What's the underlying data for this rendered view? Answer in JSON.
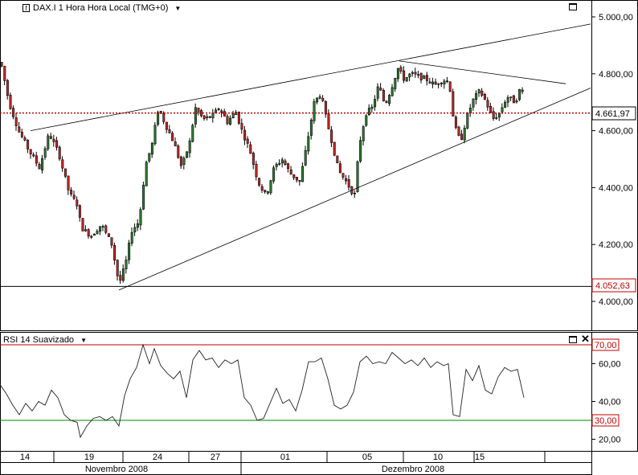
{
  "main_panel": {
    "title": "DAX.I 1 Hora Hora Local (TMG+0)",
    "icon": "chart-indicator-icon",
    "dropdown_icon": "triangle-down-icon",
    "window_icon": "maximize-icon"
  },
  "rsi_panel": {
    "title": "RSI 14 Suavizado",
    "dropdown_icon": "triangle-down-icon",
    "window_icon": "maximize-icon",
    "close_icon": "close-icon"
  },
  "colors": {
    "up_candle": "#2e7d32",
    "down_candle": "#c62828",
    "last_price_line": "#c00000",
    "overbought_line": "#c00000",
    "oversold_line": "#008000",
    "trendline": "#000000"
  },
  "chart_data": [
    {
      "type": "candlestick",
      "title": "DAX.I 1 Hora Hora Local (TMG+0)",
      "ylim": [
        3900,
        5050
      ],
      "y_ticks": [
        "5.000,00",
        "4.800,00",
        "4.600,00",
        "4.400,00",
        "4.200,00",
        "4.000,00"
      ],
      "y_tick_values": [
        5000,
        4800,
        4600,
        4400,
        4200,
        4000
      ],
      "price_labels": [
        {
          "label": "4.661,97",
          "value": 4661.97
        },
        {
          "label": "4.052,63",
          "value": 4052.63
        }
      ],
      "last_price": 4661.97,
      "horizontal_level": 4052.63,
      "x_ticks": [
        "14",
        "19",
        "24",
        "27",
        "01",
        "05",
        "10",
        "15"
      ],
      "month_labels": [
        "Novembro 2008",
        "Dezembro 2008"
      ],
      "close_path": [
        [
          0,
          4840
        ],
        [
          10,
          4700
        ],
        [
          22,
          4600
        ],
        [
          35,
          4530
        ],
        [
          48,
          4470
        ],
        [
          60,
          4590
        ],
        [
          72,
          4520
        ],
        [
          85,
          4380
        ],
        [
          95,
          4340
        ],
        [
          100,
          4260
        ],
        [
          112,
          4230
        ],
        [
          125,
          4270
        ],
        [
          138,
          4200
        ],
        [
          147,
          4060
        ],
        [
          155,
          4130
        ],
        [
          163,
          4250
        ],
        [
          172,
          4280
        ],
        [
          180,
          4480
        ],
        [
          188,
          4550
        ],
        [
          196,
          4680
        ],
        [
          205,
          4620
        ],
        [
          215,
          4560
        ],
        [
          225,
          4470
        ],
        [
          235,
          4560
        ],
        [
          242,
          4680
        ],
        [
          252,
          4640
        ],
        [
          262,
          4650
        ],
        [
          272,
          4680
        ],
        [
          282,
          4630
        ],
        [
          292,
          4670
        ],
        [
          300,
          4600
        ],
        [
          310,
          4530
        ],
        [
          320,
          4420
        ],
        [
          330,
          4370
        ],
        [
          340,
          4470
        ],
        [
          350,
          4500
        ],
        [
          360,
          4450
        ],
        [
          372,
          4420
        ],
        [
          380,
          4540
        ],
        [
          390,
          4700
        ],
        [
          398,
          4730
        ],
        [
          405,
          4640
        ],
        [
          412,
          4560
        ],
        [
          420,
          4460
        ],
        [
          430,
          4420
        ],
        [
          440,
          4370
        ],
        [
          446,
          4550
        ],
        [
          454,
          4660
        ],
        [
          462,
          4680
        ],
        [
          470,
          4760
        ],
        [
          478,
          4690
        ],
        [
          486,
          4750
        ],
        [
          494,
          4820
        ],
        [
          502,
          4780
        ],
        [
          510,
          4800
        ],
        [
          520,
          4790
        ],
        [
          530,
          4780
        ],
        [
          540,
          4760
        ],
        [
          550,
          4780
        ],
        [
          558,
          4770
        ],
        [
          564,
          4620
        ],
        [
          572,
          4560
        ],
        [
          580,
          4650
        ],
        [
          588,
          4710
        ],
        [
          596,
          4740
        ],
        [
          604,
          4700
        ],
        [
          612,
          4640
        ],
        [
          620,
          4660
        ],
        [
          630,
          4720
        ],
        [
          640,
          4700
        ],
        [
          648,
          4760
        ],
        [
          652,
          4660
        ]
      ],
      "trendlines": [
        {
          "from": [
            38,
            4600
          ],
          "to": [
            735,
            4975
          ]
        },
        {
          "from": [
            148,
            4040
          ],
          "to": [
            735,
            4750
          ]
        },
        {
          "from": [
            497,
            4845
          ],
          "to": [
            704,
            4765
          ]
        }
      ]
    },
    {
      "type": "line",
      "title": "RSI 14 Suavizado",
      "ylim": [
        15,
        75
      ],
      "y_ticks": [
        "70,00",
        "60,00",
        "40,00",
        "30,00",
        "20,00"
      ],
      "y_tick_values": [
        70,
        60,
        40,
        30,
        20
      ],
      "overbought": 70,
      "oversold": 30,
      "series": [
        {
          "values": [
            [
              0,
              49
            ],
            [
              8,
              44
            ],
            [
              16,
              38
            ],
            [
              24,
              33
            ],
            [
              32,
              39
            ],
            [
              40,
              35
            ],
            [
              48,
              40
            ],
            [
              56,
              38
            ],
            [
              64,
              46
            ],
            [
              72,
              42
            ],
            [
              80,
              33
            ],
            [
              88,
              30
            ],
            [
              96,
              29
            ],
            [
              100,
              21
            ],
            [
              108,
              27
            ],
            [
              116,
              31
            ],
            [
              124,
              32
            ],
            [
              132,
              30
            ],
            [
              140,
              32
            ],
            [
              148,
              27
            ],
            [
              155,
              43
            ],
            [
              162,
              52
            ],
            [
              170,
              58
            ],
            [
              178,
              70
            ],
            [
              186,
              60
            ],
            [
              192,
              68
            ],
            [
              200,
              59
            ],
            [
              208,
              55
            ],
            [
              216,
              52
            ],
            [
              224,
              56
            ],
            [
              232,
              42
            ],
            [
              240,
              62
            ],
            [
              248,
              67
            ],
            [
              256,
              62
            ],
            [
              264,
              63
            ],
            [
              272,
              58
            ],
            [
              280,
              62
            ],
            [
              288,
              60
            ],
            [
              296,
              62
            ],
            [
              304,
              42
            ],
            [
              312,
              38
            ],
            [
              320,
              30
            ],
            [
              328,
              31
            ],
            [
              336,
              39
            ],
            [
              344,
              47
            ],
            [
              352,
              39
            ],
            [
              360,
              41
            ],
            [
              368,
              35
            ],
            [
              376,
              46
            ],
            [
              384,
              61
            ],
            [
              392,
              61
            ],
            [
              400,
              63
            ],
            [
              408,
              52
            ],
            [
              416,
              38
            ],
            [
              424,
              36
            ],
            [
              432,
              38
            ],
            [
              440,
              45
            ],
            [
              448,
              61
            ],
            [
              456,
              64
            ],
            [
              464,
              60
            ],
            [
              472,
              61
            ],
            [
              480,
              60
            ],
            [
              488,
              66
            ],
            [
              496,
              63
            ],
            [
              504,
              60
            ],
            [
              512,
              62
            ],
            [
              520,
              59
            ],
            [
              528,
              63
            ],
            [
              536,
              58
            ],
            [
              544,
              61
            ],
            [
              552,
              59
            ],
            [
              558,
              60
            ],
            [
              564,
              33
            ],
            [
              572,
              32
            ],
            [
              580,
              57
            ],
            [
              588,
              51
            ],
            [
              596,
              59
            ],
            [
              604,
              46
            ],
            [
              612,
              44
            ],
            [
              620,
              53
            ],
            [
              628,
              58
            ],
            [
              636,
              56
            ],
            [
              644,
              57
            ],
            [
              652,
              42
            ]
          ]
        }
      ]
    }
  ]
}
